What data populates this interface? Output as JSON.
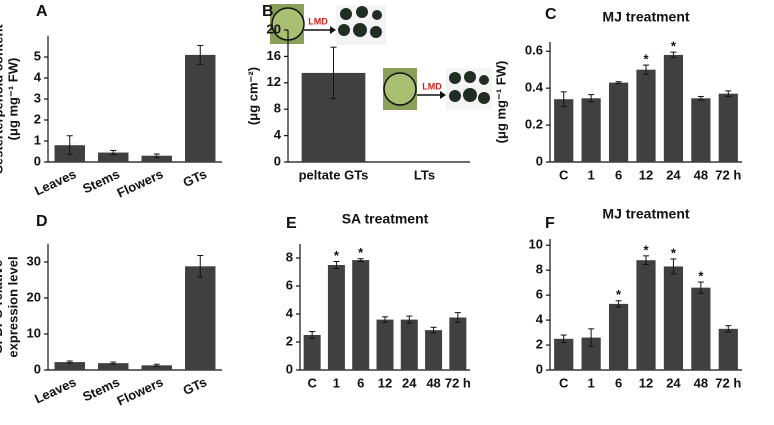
{
  "chart_data": [
    {
      "type": "bar",
      "panel_label": "A",
      "ylabel": [
        "Sesterterpenoid content",
        "(μg mg⁻¹ FW)"
      ],
      "categories": [
        "Leaves",
        "Stems",
        "Flowers",
        "GTs"
      ],
      "values": [
        0.8,
        0.45,
        0.3,
        5.1
      ],
      "errors": [
        0.45,
        0.1,
        0.08,
        0.45
      ],
      "ylim": [
        0,
        6
      ],
      "yticks": [
        0,
        1,
        2,
        3,
        4,
        5
      ],
      "color": "#404040"
    },
    {
      "type": "bar",
      "panel_label": "B",
      "ylabel": [
        "(μg cm⁻²)"
      ],
      "inset_labels": [
        "LMD",
        "LMD"
      ],
      "categories": [
        "peltate GTs",
        "LTs"
      ],
      "values": [
        13.5,
        0
      ],
      "errors": [
        3.9,
        null
      ],
      "ylim": [
        0,
        20
      ],
      "yticks": [
        0,
        4,
        8,
        12,
        16,
        20
      ],
      "color": "#404040"
    },
    {
      "type": "bar",
      "panel_label": "C",
      "title": "MJ treatment",
      "ylabel": [
        "(μg mg⁻¹ FW)"
      ],
      "categories": [
        "C",
        "1",
        "6",
        "12",
        "24",
        "48",
        "72 h"
      ],
      "values": [
        0.34,
        0.345,
        0.43,
        0.5,
        0.58,
        0.345,
        0.37
      ],
      "errors": [
        0.04,
        0.02,
        0.005,
        0.025,
        0.015,
        0.01,
        0.015
      ],
      "annotations": [
        null,
        null,
        null,
        "*",
        "*",
        null,
        null
      ],
      "ylim": [
        0,
        0.65
      ],
      "yticks": [
        0,
        0.2,
        0.4,
        0.6
      ],
      "color": "#404040"
    },
    {
      "type": "bar",
      "panel_label": "D",
      "ylabel_italic": "GFDPS",
      "ylabel": [
        "relative",
        "expression level"
      ],
      "categories": [
        "Leaves",
        "Stems",
        "Flowers",
        "GTs"
      ],
      "values": [
        2.2,
        1.9,
        1.3,
        28.8
      ],
      "errors": [
        0.3,
        0.3,
        0.3,
        3
      ],
      "ylim": [
        0,
        35
      ],
      "yticks": [
        0,
        10,
        20,
        30
      ],
      "color": "#404040"
    },
    {
      "type": "bar",
      "panel_label": "E",
      "title": "SA treatment",
      "categories": [
        "C",
        "1",
        "6",
        "12",
        "24",
        "48",
        "72 h"
      ],
      "values": [
        2.5,
        7.5,
        7.85,
        3.6,
        3.6,
        2.85,
        3.75
      ],
      "errors": [
        0.25,
        0.25,
        0.1,
        0.2,
        0.25,
        0.2,
        0.35
      ],
      "annotations": [
        null,
        "*",
        "*",
        null,
        null,
        null,
        null
      ],
      "ylim": [
        0,
        9
      ],
      "yticks": [
        0,
        2,
        4,
        6,
        8
      ],
      "color": "#404040"
    },
    {
      "type": "bar",
      "panel_label": "F",
      "title": "MJ treatment",
      "categories": [
        "C",
        "1",
        "6",
        "12",
        "24",
        "48",
        "72 h"
      ],
      "values": [
        2.5,
        2.6,
        5.3,
        8.8,
        8.3,
        6.6,
        3.3
      ],
      "errors": [
        0.3,
        0.7,
        0.25,
        0.35,
        0.6,
        0.45,
        0.25
      ],
      "annotations": [
        null,
        null,
        "*",
        "*",
        "*",
        "*",
        null
      ],
      "ylim": [
        0,
        10.5
      ],
      "yticks": [
        0,
        2,
        4,
        6,
        8,
        10
      ],
      "color": "#404040"
    }
  ]
}
